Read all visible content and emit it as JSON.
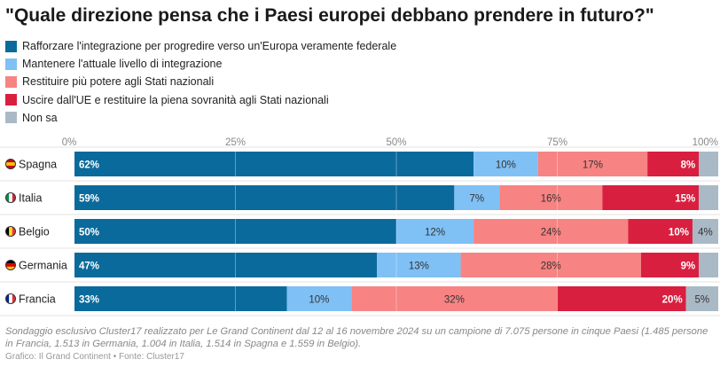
{
  "chart_data": {
    "type": "bar",
    "orientation": "horizontal-stacked",
    "title": "\"Quale direzione pensa che i Paesi europei debbano prendere in futuro?\"",
    "categories": [
      "Spagna",
      "Italia",
      "Belgio",
      "Germania",
      "Francia"
    ],
    "flags": [
      "flag-spain-icon",
      "flag-italy-icon",
      "flag-belgium-icon",
      "flag-germany-icon",
      "flag-france-icon"
    ],
    "xlim": [
      0,
      100
    ],
    "ticks": [
      "0%",
      "25%",
      "50%",
      "75%",
      "100%"
    ],
    "tick_values": [
      0,
      25,
      50,
      75,
      100
    ],
    "legend_placement": "top-left",
    "series": [
      {
        "name": "Rafforzare l'integrazione per progredire verso un'Europa veramente federale",
        "color": "#0a6a9c",
        "values": [
          62,
          59,
          50,
          47,
          33
        ],
        "labels": [
          "62%",
          "59%",
          "50%",
          "47%",
          "33%"
        ]
      },
      {
        "name": "Mantenere l'attuale livello di integrazione",
        "color": "#7fc0f5",
        "values": [
          10,
          7,
          12,
          13,
          10
        ],
        "labels": [
          "10%",
          "7%",
          "12%",
          "13%",
          "10%"
        ]
      },
      {
        "name": "Restituire più potere agli Stati nazionali",
        "color": "#f78383",
        "values": [
          17,
          16,
          24,
          28,
          32
        ],
        "labels": [
          "17%",
          "16%",
          "24%",
          "28%",
          "32%"
        ]
      },
      {
        "name": "Uscire dall'UE e restituire la piena sovranità agli Stati nazionali",
        "color": "#d91f3f",
        "values": [
          8,
          15,
          10,
          9,
          20
        ],
        "labels": [
          "8%",
          "15%",
          "10%",
          "9%",
          "20%"
        ]
      },
      {
        "name": "Non sa",
        "color": "#a9b9c6",
        "values": [
          3,
          3,
          4,
          3,
          5
        ],
        "labels": [
          "",
          "",
          "4%",
          "",
          "5%"
        ]
      }
    ]
  },
  "footnote": "Sondaggio esclusivo Cluster17 realizzato per Le Grand Continent dal 12 al 16 novembre 2024 su un campione di 7.075 persone in cinque Paesi (1.485 persone in Francia, 1.513 in Germania, 1.004 in Italia, 1.514 in Spagna e 1.559 in Belgio).",
  "credit": "Grafico: Il Grand Continent • Fonte: Cluster17"
}
